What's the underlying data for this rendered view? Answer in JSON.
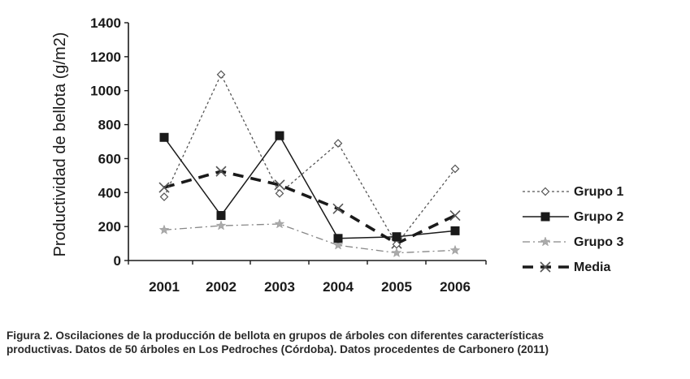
{
  "chart_data": {
    "type": "line",
    "title": "",
    "xlabel": "",
    "ylabel": "Productividad de bellota  (g/m2)",
    "categories": [
      "2001",
      "2002",
      "2003",
      "2004",
      "2005",
      "2006"
    ],
    "ylim": [
      0,
      1400
    ],
    "yticks": [
      0,
      200,
      400,
      600,
      800,
      1000,
      1200,
      1400
    ],
    "grid": false,
    "legend_position": "right",
    "series": [
      {
        "name": "Grupo 1",
        "values": [
          375,
          1095,
          395,
          690,
          95,
          540
        ],
        "color": "#555555",
        "line_style": "dotted",
        "marker": "open-diamond"
      },
      {
        "name": "Grupo 2",
        "values": [
          725,
          265,
          735,
          130,
          140,
          175
        ],
        "color": "#1a1a1a",
        "line_style": "solid",
        "marker": "filled-square"
      },
      {
        "name": "Grupo 3",
        "values": [
          180,
          205,
          215,
          90,
          45,
          60
        ],
        "color": "#888888",
        "line_style": "dash-dot",
        "marker": "star"
      },
      {
        "name": "Media",
        "values": [
          430,
          525,
          445,
          305,
          100,
          265
        ],
        "color": "#1a1a1a",
        "line_style": "thick-dashed",
        "marker": "x"
      }
    ]
  },
  "caption": {
    "line1": "Figura 2. Oscilaciones de la producción de bellota en grupos de árboles con diferentes características",
    "line2": "productivas. Datos de 50 árboles en Los Pedroches (Córdoba). Datos procedentes de Carbonero (2011)"
  }
}
